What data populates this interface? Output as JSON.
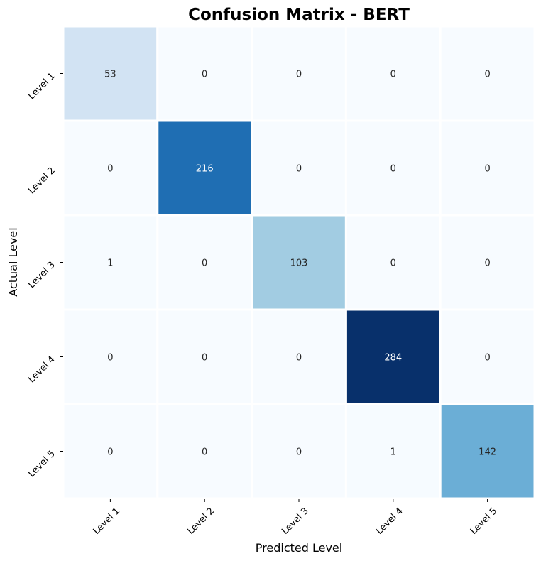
{
  "chart_data": {
    "type": "heatmap",
    "title": "Confusion Matrix - BERT",
    "xlabel": "Predicted Level",
    "ylabel": "Actual Level",
    "x_categories": [
      "Level 1",
      "Level 2",
      "Level 3",
      "Level 4",
      "Level 5"
    ],
    "y_categories": [
      "Level 1",
      "Level 2",
      "Level 3",
      "Level 4",
      "Level 5"
    ],
    "values": [
      [
        53,
        0,
        0,
        0,
        0
      ],
      [
        0,
        216,
        0,
        0,
        0
      ],
      [
        1,
        0,
        103,
        0,
        0
      ],
      [
        0,
        0,
        0,
        284,
        0
      ],
      [
        0,
        0,
        0,
        1,
        142
      ]
    ],
    "colormap": "Blues",
    "colorbar": false,
    "cell_separator_color": "#ffffff"
  }
}
